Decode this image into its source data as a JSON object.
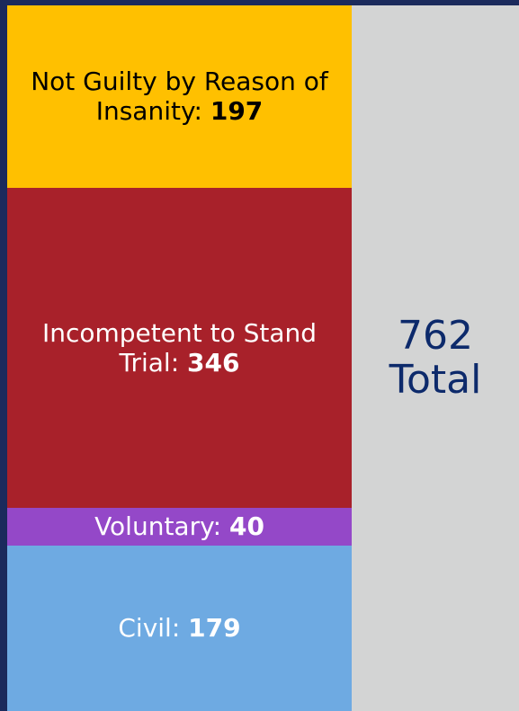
{
  "chart_data": {
    "type": "stacked_bar",
    "categories": [
      "Not Guilty by Reason of Insanity:",
      "Incompetent to Stand Trial:",
      "Voluntary:",
      "Civil:"
    ],
    "values": [
      197,
      346,
      40,
      179
    ],
    "colors": [
      "#ffc000",
      "#a8212a",
      "#9448c8",
      "#6eaae2"
    ],
    "label_colors": [
      "#000000",
      "#ffffff",
      "#ffffff",
      "#ffffff"
    ],
    "total": 762,
    "total_label": "Total"
  }
}
